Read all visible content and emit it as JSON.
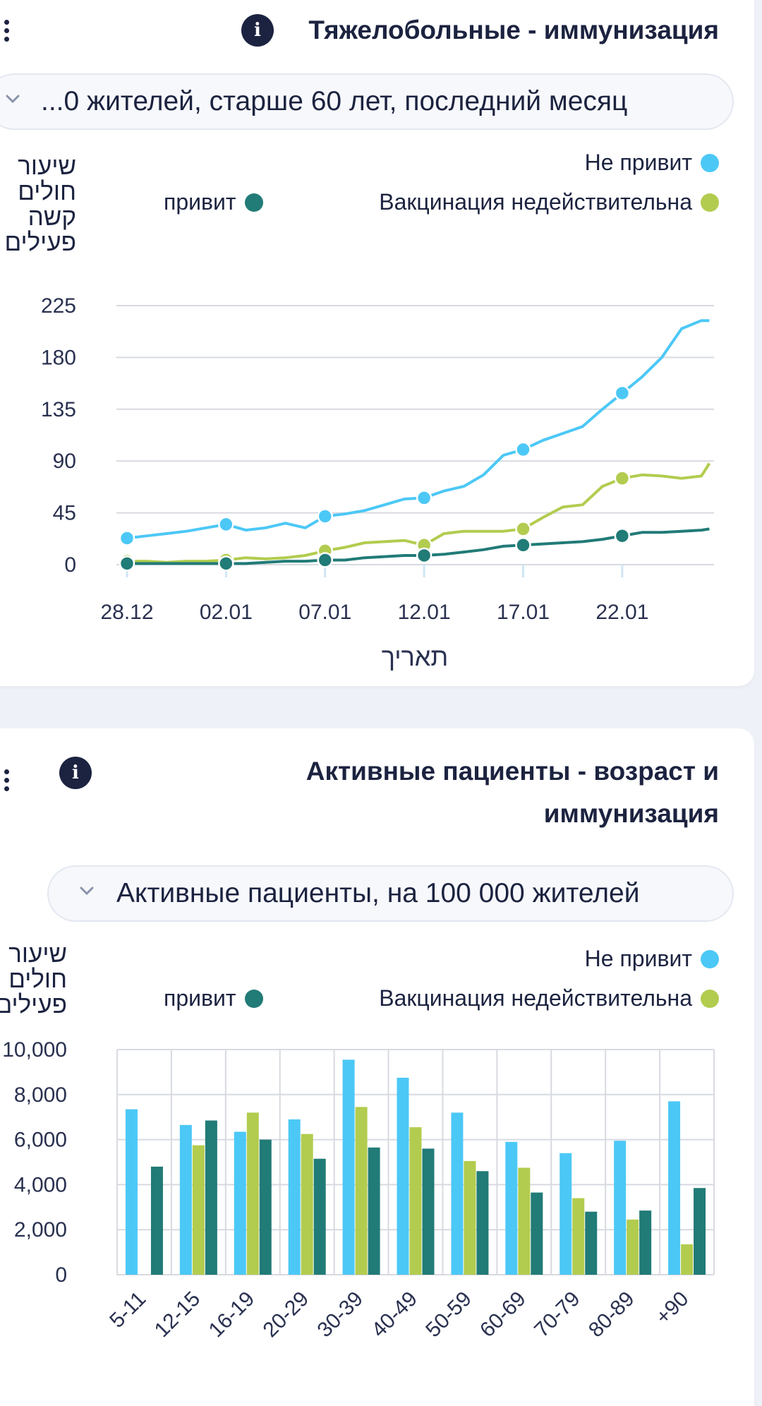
{
  "colors": {
    "unvaccinated": "#4cc8f6",
    "expired": "#b2cc4f",
    "vaccinated": "#217b77",
    "navy": "#1c2340",
    "grid": "#d7dae0"
  },
  "card1": {
    "title": "Тяжелобольные - иммунизация",
    "info_icon": "i",
    "dropdown_value": "...0 жителей, старше 60 лет, последний месяц",
    "y_label": "שיעור חולים קשה פעילים",
    "legend": {
      "unvaccinated": "Не привит",
      "vaccinated": "привит",
      "expired": "Вакцинация недействительна"
    },
    "chart_data": {
      "type": "line",
      "xlabel": "תאריך",
      "ylabel": "שיעור חולים קשה פעילים",
      "x_ticks": [
        "28.12",
        "02.01",
        "07.01",
        "12.01",
        "17.01",
        "22.01"
      ],
      "y_ticks": [
        "0",
        "45",
        "90",
        "135",
        "180",
        "225"
      ],
      "ylim": [
        0,
        225
      ],
      "x_dates": [
        "28.12",
        "29.12",
        "30.12",
        "31.12",
        "01.01",
        "02.01",
        "03.01",
        "04.01",
        "05.01",
        "06.01",
        "07.01",
        "08.01",
        "09.01",
        "10.01",
        "11.01",
        "12.01",
        "13.01",
        "14.01",
        "15.01",
        "16.01",
        "17.01",
        "18.01",
        "19.01",
        "20.01",
        "21.01",
        "22.01",
        "23.01",
        "24.01",
        "25.01",
        "26.01",
        "26.01"
      ],
      "series": [
        {
          "name": "Не привит",
          "color_key": "unvaccinated",
          "values": [
            23,
            25,
            27,
            29,
            32,
            35,
            30,
            32,
            36,
            32,
            42,
            44,
            47,
            52,
            57,
            58,
            64,
            68,
            78,
            95,
            100,
            108,
            114,
            120,
            135,
            149,
            163,
            180,
            205,
            212,
            212
          ]
        },
        {
          "name": "Вакцинация недействительна",
          "color_key": "expired",
          "values": [
            3,
            3,
            2,
            3,
            3,
            4,
            6,
            5,
            6,
            8,
            12,
            15,
            19,
            20,
            21,
            17,
            27,
            29,
            29,
            29,
            31,
            41,
            50,
            52,
            68,
            75,
            78,
            77,
            75,
            77,
            88
          ]
        },
        {
          "name": "привит",
          "color_key": "vaccinated",
          "values": [
            1,
            1,
            1,
            1,
            1,
            1,
            1,
            2,
            3,
            3,
            4,
            4,
            6,
            7,
            8,
            8,
            9,
            11,
            13,
            16,
            17,
            18,
            19,
            20,
            22,
            25,
            28,
            28,
            29,
            30,
            31
          ]
        }
      ],
      "grid": true
    }
  },
  "card2": {
    "title_line1": "Активные пациенты - возраст и",
    "title_line2": "иммунизация",
    "info_icon": "i",
    "dropdown_value": "Активные пациенты, на 100 000 жителей",
    "y_label": "שיעור חולים פעילים",
    "legend": {
      "unvaccinated": "Не привит",
      "vaccinated": "привит",
      "expired": "Вакцинация недействительна"
    },
    "chart_data": {
      "type": "bar",
      "categories": [
        "5-11",
        "12-15",
        "16-19",
        "20-29",
        "30-39",
        "40-49",
        "50-59",
        "60-69",
        "70-79",
        "80-89",
        "+90"
      ],
      "y_ticks": [
        "0",
        "2,000",
        "4,000",
        "6,000",
        "8,000",
        "10,000"
      ],
      "ylim": [
        0,
        10000
      ],
      "series": [
        {
          "name": "Не привит",
          "color_key": "unvaccinated",
          "values": [
            7350,
            6650,
            6350,
            6900,
            9550,
            8750,
            7200,
            5900,
            5400,
            5950,
            7700
          ]
        },
        {
          "name": "Вакцинация недействительна",
          "color_key": "expired",
          "values": [
            0,
            5750,
            7200,
            6250,
            7450,
            6550,
            5050,
            4750,
            3400,
            2450,
            1350
          ]
        },
        {
          "name": "привит",
          "color_key": "vaccinated",
          "values": [
            4800,
            6850,
            6000,
            5150,
            5650,
            5600,
            4600,
            3650,
            2800,
            2850,
            3850
          ]
        }
      ],
      "grid": true
    }
  }
}
